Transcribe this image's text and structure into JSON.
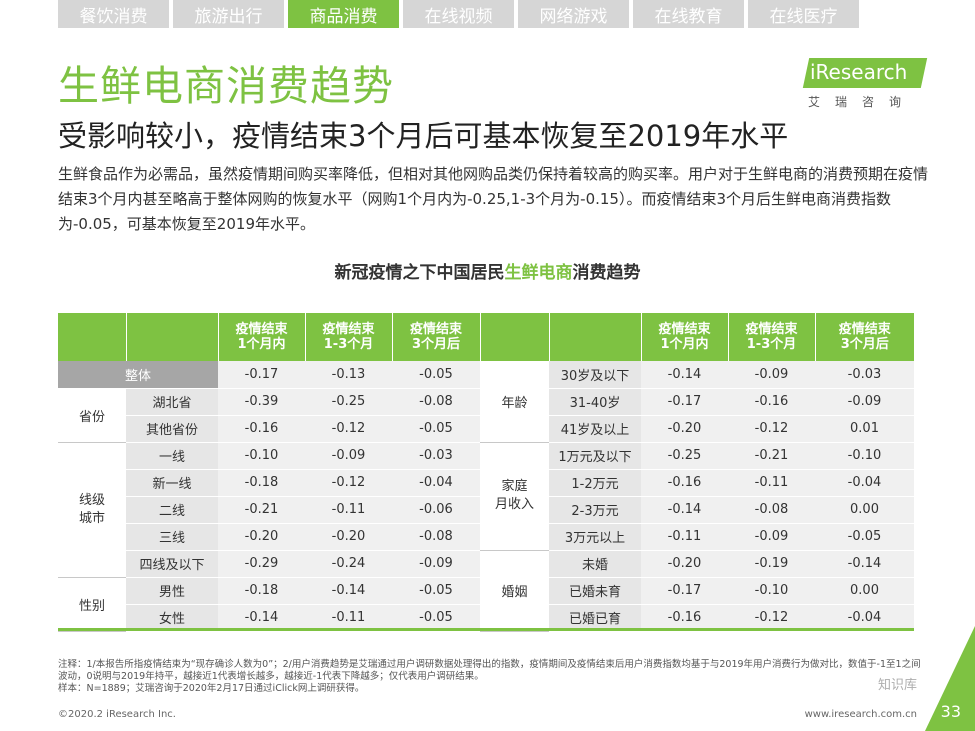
{
  "tabs": [
    "餐饮消费",
    "旅游出行",
    "商品消费",
    "在线视频",
    "网络游戏",
    "在线教育",
    "在线医疗"
  ],
  "active_tab": 2,
  "title": "生鲜电商消费趋势",
  "subtitle": "受影响较小，疫情结束3个月后可基本恢复至2019年水平",
  "logo": {
    "text": "iResearch",
    "sub": "艾瑞咨询"
  },
  "paragraph": "生鲜食品作为必需品，虽然疫情期间购买率降低，但相对其他网购品类仍保持着较高的购买率。用户对于生鲜电商的消费预期在疫情结束3个月内甚至略高于整体网购的恢复水平（网购1个月内为-0.25,1-3个月为-0.15）。而疫情结束3个月后生鲜电商消费指数为-0.05，可基本恢复至2019年水平。",
  "chart_title": {
    "before": "新冠疫情之下中国居民",
    "highlight": "生鲜电商",
    "after": "消费趋势"
  },
  "headers": [
    "疫情结束\n1个月内",
    "疫情结束\n1-3个月",
    "疫情结束\n3个月后"
  ],
  "left_rows": [
    {
      "group": "整体",
      "label": "",
      "values": [
        "-0.17",
        "-0.13",
        "-0.05"
      ]
    },
    {
      "group": "省份",
      "label": "湖北省",
      "values": [
        "-0.39",
        "-0.25",
        "-0.08"
      ]
    },
    {
      "group": "",
      "label": "其他省份",
      "values": [
        "-0.16",
        "-0.12",
        "-0.05"
      ]
    },
    {
      "group": "线级\n城市",
      "label": "一线",
      "values": [
        "-0.10",
        "-0.09",
        "-0.03"
      ]
    },
    {
      "group": "",
      "label": "新一线",
      "values": [
        "-0.18",
        "-0.12",
        "-0.04"
      ]
    },
    {
      "group": "",
      "label": "二线",
      "values": [
        "-0.21",
        "-0.11",
        "-0.06"
      ]
    },
    {
      "group": "",
      "label": "三线",
      "values": [
        "-0.20",
        "-0.20",
        "-0.08"
      ]
    },
    {
      "group": "",
      "label": "四线及以下",
      "values": [
        "-0.29",
        "-0.24",
        "-0.09"
      ]
    },
    {
      "group": "性别",
      "label": "男性",
      "values": [
        "-0.18",
        "-0.14",
        "-0.05"
      ]
    },
    {
      "group": "",
      "label": "女性",
      "values": [
        "-0.14",
        "-0.11",
        "-0.05"
      ]
    }
  ],
  "right_rows": [
    {
      "group": "年龄",
      "label": "30岁及以下",
      "values": [
        "-0.14",
        "-0.09",
        "-0.03"
      ]
    },
    {
      "group": "",
      "label": "31-40岁",
      "values": [
        "-0.17",
        "-0.16",
        "-0.09"
      ]
    },
    {
      "group": "",
      "label": "41岁及以上",
      "values": [
        "-0.20",
        "-0.12",
        "0.01"
      ]
    },
    {
      "group": "家庭\n月收入",
      "label": "1万元及以下",
      "values": [
        "-0.25",
        "-0.21",
        "-0.10"
      ]
    },
    {
      "group": "",
      "label": "1-2万元",
      "values": [
        "-0.16",
        "-0.11",
        "-0.04"
      ]
    },
    {
      "group": "",
      "label": "2-3万元",
      "values": [
        "-0.14",
        "-0.08",
        "0.00"
      ]
    },
    {
      "group": "",
      "label": "3万元以上",
      "values": [
        "-0.11",
        "-0.09",
        "-0.05"
      ]
    },
    {
      "group": "婚姻",
      "label": "未婚",
      "values": [
        "-0.20",
        "-0.19",
        "-0.14"
      ]
    },
    {
      "group": "",
      "label": "已婚未育",
      "values": [
        "-0.17",
        "-0.10",
        "0.00"
      ]
    },
    {
      "group": "",
      "label": "已婚已育",
      "values": [
        "-0.16",
        "-0.12",
        "-0.04"
      ]
    }
  ],
  "notes": [
    "注释：1/本报告所指疫情结束为“现存确诊人数为0”；2/用户消费趋势是艾瑞通过用户调研数据处理得出的指数，疫情期间及疫情结束后用户消费指数均基于与2019年用户消费行为做对比，数值于-1至1之间波动，0说明与2019年持平，越接近1代表增长越多，越接近-1代表下降越多；仅代表用户调研结果。",
    "样本：N=1889；艾瑞咨询于2020年2月17日通过iClick网上调研获得。"
  ],
  "copyright": "©2020.2 iResearch Inc.",
  "website": "www.iresearch.com.cn",
  "page_number": "33",
  "watermark": "知识库",
  "colors": {
    "accent": "#7ec242",
    "header_gray": "#d6d6d6",
    "cell": "#f0f0f0",
    "label": "#e6e6e6",
    "total": "#a6a6a6"
  }
}
